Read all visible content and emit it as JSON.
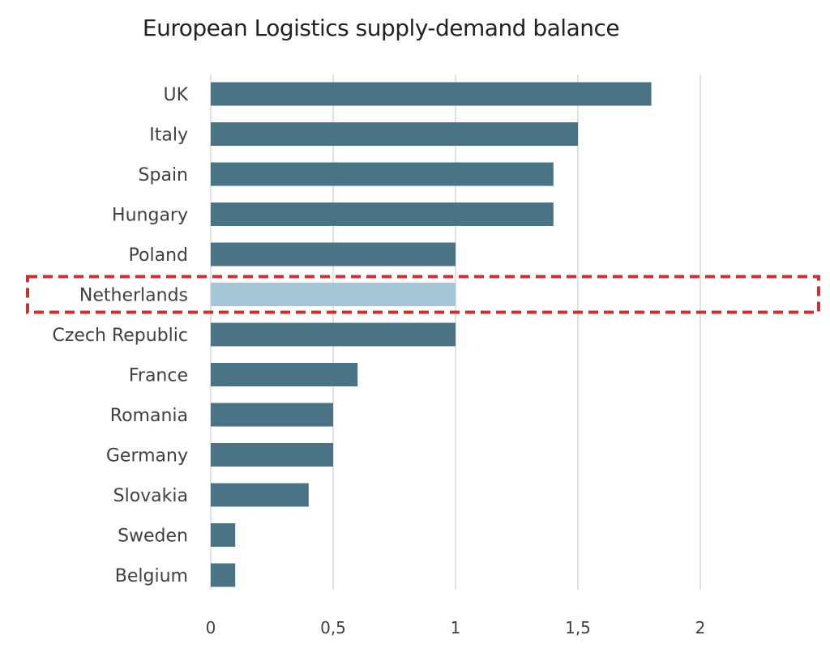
{
  "chart_data": {
    "type": "bar",
    "orientation": "horizontal",
    "title": "European Logistics supply-demand balance",
    "xlabel": "",
    "ylabel": "",
    "categories": [
      "UK",
      "Italy",
      "Spain",
      "Hungary",
      "Poland",
      "Netherlands",
      "Czech Republic",
      "France",
      "Romania",
      "Germany",
      "Slovakia",
      "Sweden",
      "Belgium"
    ],
    "values": [
      1.8,
      1.5,
      1.4,
      1.4,
      1.0,
      1.0,
      1.0,
      0.6,
      0.5,
      0.5,
      0.4,
      0.1,
      0.1
    ],
    "xlim": [
      0,
      2
    ],
    "xticks": [
      0,
      0.5,
      1,
      1.5,
      2
    ],
    "xtick_labels": [
      "0",
      "0,5",
      "1",
      "1,5",
      "2"
    ],
    "grid": "vertical",
    "legend": "none",
    "highlighted_category": "Netherlands",
    "colors": {
      "bar": "#4a7386",
      "highlight_bar": "#a4c6d6",
      "highlight_box": "#c83232",
      "grid": "#d9d9d9"
    }
  }
}
